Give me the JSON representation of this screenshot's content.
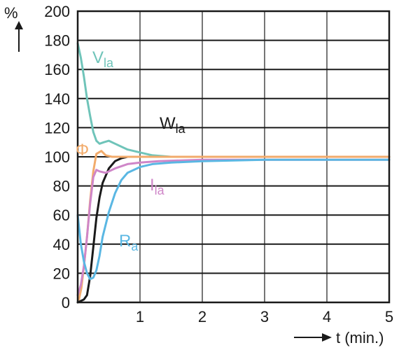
{
  "chart_data": {
    "type": "line",
    "xlabel": "t (min.)",
    "ylabel": "%",
    "xlim": [
      0,
      5
    ],
    "ylim": [
      0,
      200
    ],
    "x_ticks": [
      1,
      2,
      3,
      4,
      5
    ],
    "y_ticks": [
      0,
      20,
      40,
      60,
      80,
      100,
      120,
      140,
      160,
      180,
      200
    ],
    "grid": true,
    "series": [
      {
        "name": "V_la",
        "label_main": "V",
        "label_sub": "la",
        "color": "#6fc4b9",
        "points": [
          [
            0,
            178
          ],
          [
            0.05,
            168
          ],
          [
            0.1,
            155
          ],
          [
            0.15,
            140
          ],
          [
            0.2,
            128
          ],
          [
            0.25,
            117
          ],
          [
            0.3,
            111
          ],
          [
            0.35,
            109
          ],
          [
            0.42,
            110
          ],
          [
            0.5,
            111
          ],
          [
            0.6,
            109
          ],
          [
            0.8,
            105
          ],
          [
            1.0,
            103
          ],
          [
            1.2,
            101
          ],
          [
            1.5,
            100
          ],
          [
            2,
            100
          ],
          [
            3,
            100
          ],
          [
            4,
            100
          ],
          [
            5,
            100
          ]
        ]
      },
      {
        "name": "W_la",
        "label_main": "W",
        "label_sub": "la",
        "color": "#1a1a1a",
        "points": [
          [
            0,
            0
          ],
          [
            0.1,
            2
          ],
          [
            0.15,
            5
          ],
          [
            0.2,
            18
          ],
          [
            0.25,
            38
          ],
          [
            0.3,
            58
          ],
          [
            0.35,
            72
          ],
          [
            0.4,
            82
          ],
          [
            0.5,
            92
          ],
          [
            0.6,
            97
          ],
          [
            0.7,
            99
          ],
          [
            0.8,
            100
          ],
          [
            1,
            100
          ],
          [
            2,
            100
          ],
          [
            3,
            100
          ],
          [
            4,
            100
          ],
          [
            5,
            100
          ]
        ]
      },
      {
        "name": "Φ",
        "label_main": "Φ",
        "label_sub": "",
        "color": "#f2ab6b",
        "points": [
          [
            0.02,
            2
          ],
          [
            0.06,
            10
          ],
          [
            0.1,
            25
          ],
          [
            0.15,
            45
          ],
          [
            0.2,
            70
          ],
          [
            0.25,
            90
          ],
          [
            0.3,
            102
          ],
          [
            0.38,
            104
          ],
          [
            0.45,
            101
          ],
          [
            0.55,
            100
          ],
          [
            1,
            100
          ],
          [
            2,
            100
          ],
          [
            3,
            100
          ],
          [
            4,
            100
          ],
          [
            5,
            100
          ]
        ]
      },
      {
        "name": "I_la",
        "label_main": "I",
        "label_sub": "la",
        "color": "#cf86c8",
        "points": [
          [
            0,
            5
          ],
          [
            0.05,
            12
          ],
          [
            0.1,
            25
          ],
          [
            0.15,
            45
          ],
          [
            0.2,
            68
          ],
          [
            0.25,
            86
          ],
          [
            0.3,
            91
          ],
          [
            0.35,
            90
          ],
          [
            0.45,
            89
          ],
          [
            0.6,
            92
          ],
          [
            0.8,
            95
          ],
          [
            1,
            96
          ],
          [
            1.3,
            97
          ],
          [
            2,
            98
          ],
          [
            3,
            98
          ],
          [
            4,
            98
          ],
          [
            5,
            98
          ]
        ]
      },
      {
        "name": "R_a",
        "label_main": "R",
        "label_sub": "a",
        "color": "#5ab7e3",
        "points": [
          [
            0,
            60
          ],
          [
            0.05,
            40
          ],
          [
            0.1,
            28
          ],
          [
            0.15,
            20
          ],
          [
            0.2,
            16
          ],
          [
            0.25,
            17
          ],
          [
            0.3,
            22
          ],
          [
            0.35,
            32
          ],
          [
            0.4,
            45
          ],
          [
            0.5,
            62
          ],
          [
            0.6,
            75
          ],
          [
            0.7,
            84
          ],
          [
            0.8,
            89
          ],
          [
            1,
            93
          ],
          [
            1.2,
            95
          ],
          [
            1.5,
            96
          ],
          [
            2,
            97
          ],
          [
            3,
            98
          ],
          [
            4,
            98
          ],
          [
            5,
            98
          ]
        ]
      }
    ]
  }
}
